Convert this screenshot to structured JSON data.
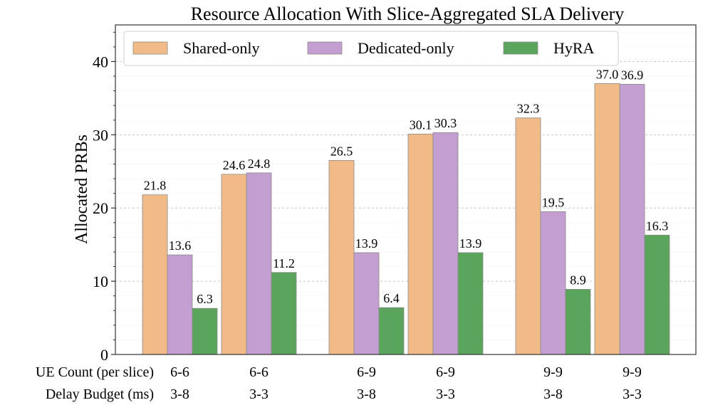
{
  "chart_data": {
    "type": "bar",
    "title": "Resource Allocation With Slice-Aggregated SLA Delivery",
    "ylabel": "Allocated PRBs",
    "xlabel": "",
    "ylim": [
      0,
      45
    ],
    "yticks": [
      0,
      10,
      20,
      30,
      40
    ],
    "grid": true,
    "legend_position": "top",
    "row_labels": [
      "UE Count (per slice)",
      "Delay Budget (ms)"
    ],
    "groups": [
      {
        "pair": [
          {
            "ue": "6-6",
            "delay": "3-8"
          },
          {
            "ue": "6-6",
            "delay": "3-3"
          }
        ]
      },
      {
        "pair": [
          {
            "ue": "6-9",
            "delay": "3-8"
          },
          {
            "ue": "6-9",
            "delay": "3-3"
          }
        ]
      },
      {
        "pair": [
          {
            "ue": "9-9",
            "delay": "3-8"
          },
          {
            "ue": "9-9",
            "delay": "3-3"
          }
        ]
      }
    ],
    "series": [
      {
        "name": "Shared-only",
        "color": "#f0bb86",
        "values": [
          21.8,
          24.6,
          26.5,
          30.1,
          32.3,
          37.0
        ],
        "labels": [
          "21.8",
          "24.6",
          "26.5",
          "30.1",
          "32.3",
          "37.0"
        ]
      },
      {
        "name": "Dedicated-only",
        "color": "#c39ed0",
        "values": [
          13.6,
          24.8,
          13.9,
          30.3,
          19.5,
          36.9
        ],
        "labels": [
          "13.6",
          "24.8",
          "13.9",
          "30.3",
          "19.5",
          "36.9"
        ]
      },
      {
        "name": "HyRA",
        "color": "#5aa45c",
        "values": [
          6.3,
          11.2,
          6.4,
          13.9,
          8.9,
          16.3
        ],
        "labels": [
          "6.3",
          "11.2",
          "6.4",
          "13.9",
          "8.9",
          "16.3"
        ]
      }
    ]
  }
}
